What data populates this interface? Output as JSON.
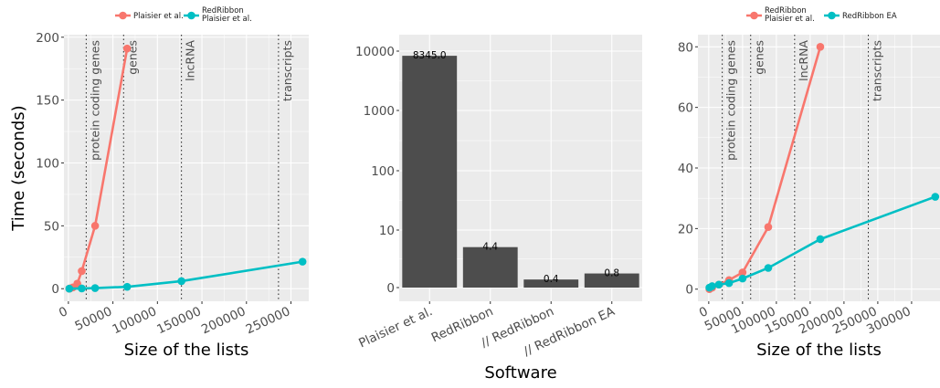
{
  "colors": {
    "plaisier": "#F8766D",
    "redribbon": "#00BFC4",
    "bar": "#4D4D4D",
    "panel": "#EBEBEB",
    "grid": "#FFFFFF"
  },
  "chart_data": [
    {
      "type": "line",
      "xlabel": "Size of the lists",
      "ylabel": "Time (seconds)",
      "xlim": [
        -5000,
        270000
      ],
      "ylim": [
        -10,
        202
      ],
      "xticks": [
        0,
        50000,
        100000,
        150000,
        200000,
        250000
      ],
      "xtick_labels": [
        "0",
        "50000",
        "100000",
        "150000",
        "200000",
        "250000"
      ],
      "yticks": [
        0,
        50,
        100,
        150,
        200
      ],
      "ytick_labels": [
        "0",
        "50",
        "100",
        "150",
        "200"
      ],
      "legend": [
        "Plaisier et al.",
        "RedRibbon\nPlaisier et al."
      ],
      "legend_position": "top",
      "vlines": [
        {
          "x": 20000,
          "label": "protein coding genes"
        },
        {
          "x": 62000,
          "label": "genes"
        },
        {
          "x": 127000,
          "label": "lncRNA"
        },
        {
          "x": 236000,
          "label": "transcripts"
        }
      ],
      "series": [
        {
          "name": "Plaisier et al.",
          "color": "#F8766D",
          "x": [
            1000,
            2000,
            5000,
            10000,
            15000,
            30000,
            66000
          ],
          "y": [
            0,
            0.3,
            1,
            4,
            14,
            50,
            191
          ]
        },
        {
          "name": "RedRibbon\nPlaisier et al.",
          "color": "#00BFC4",
          "x": [
            1000,
            15000,
            30000,
            66000,
            127000,
            263000
          ],
          "y": [
            0,
            0.2,
            0.5,
            1.5,
            6,
            21.5
          ]
        }
      ]
    },
    {
      "type": "bar",
      "xlabel": "Software",
      "ylabel": "",
      "y_scale": "log-like",
      "yticks": [
        0,
        10,
        100,
        1000,
        10000
      ],
      "ytick_labels": [
        "0",
        "10",
        "100",
        "1000",
        "10000"
      ],
      "categories": [
        "Plaisier et al.",
        "RedRibbon",
        "// RedRibbon",
        "// RedRibbon EA"
      ],
      "values": [
        8345.0,
        4.4,
        0.4,
        0.8
      ],
      "value_labels": [
        "8345.0",
        "4.4",
        "0.4",
        "0.8"
      ]
    },
    {
      "type": "line",
      "xlabel": "Size of the lists",
      "ylabel": "",
      "xlim": [
        -16000,
        342000
      ],
      "ylim": [
        -4,
        84
      ],
      "xticks": [
        0,
        50000,
        100000,
        150000,
        200000,
        250000,
        300000
      ],
      "xtick_labels": [
        "0",
        "50000",
        "100000",
        "150000",
        "200000",
        "250000",
        "300000"
      ],
      "yticks": [
        0,
        20,
        40,
        60,
        80
      ],
      "ytick_labels": [
        "0",
        "20",
        "40",
        "60",
        "80"
      ],
      "legend": [
        "RedRibbon\nPlaisier et al.",
        "RedRibbon EA"
      ],
      "legend_position": "top",
      "vlines": [
        {
          "x": 20000,
          "label": "protein coding genes"
        },
        {
          "x": 62000,
          "label": "genes"
        },
        {
          "x": 127000,
          "label": "lncRNA"
        },
        {
          "x": 236000,
          "label": "transcripts"
        }
      ],
      "series": [
        {
          "name": "RedRibbon\nPlaisier et al.",
          "color": "#F8766D",
          "x": [
            1000,
            5000,
            15000,
            30000,
            50000,
            88000,
            165000
          ],
          "y": [
            0,
            0.5,
            1.5,
            3,
            5.5,
            20.5,
            80
          ]
        },
        {
          "name": "RedRibbon EA",
          "color": "#00BFC4",
          "x": [
            1000,
            5000,
            15000,
            30000,
            50000,
            88000,
            165000,
            335000
          ],
          "y": [
            0.5,
            1,
            1.5,
            2,
            3.5,
            7,
            16.5,
            30.5
          ]
        }
      ]
    }
  ]
}
